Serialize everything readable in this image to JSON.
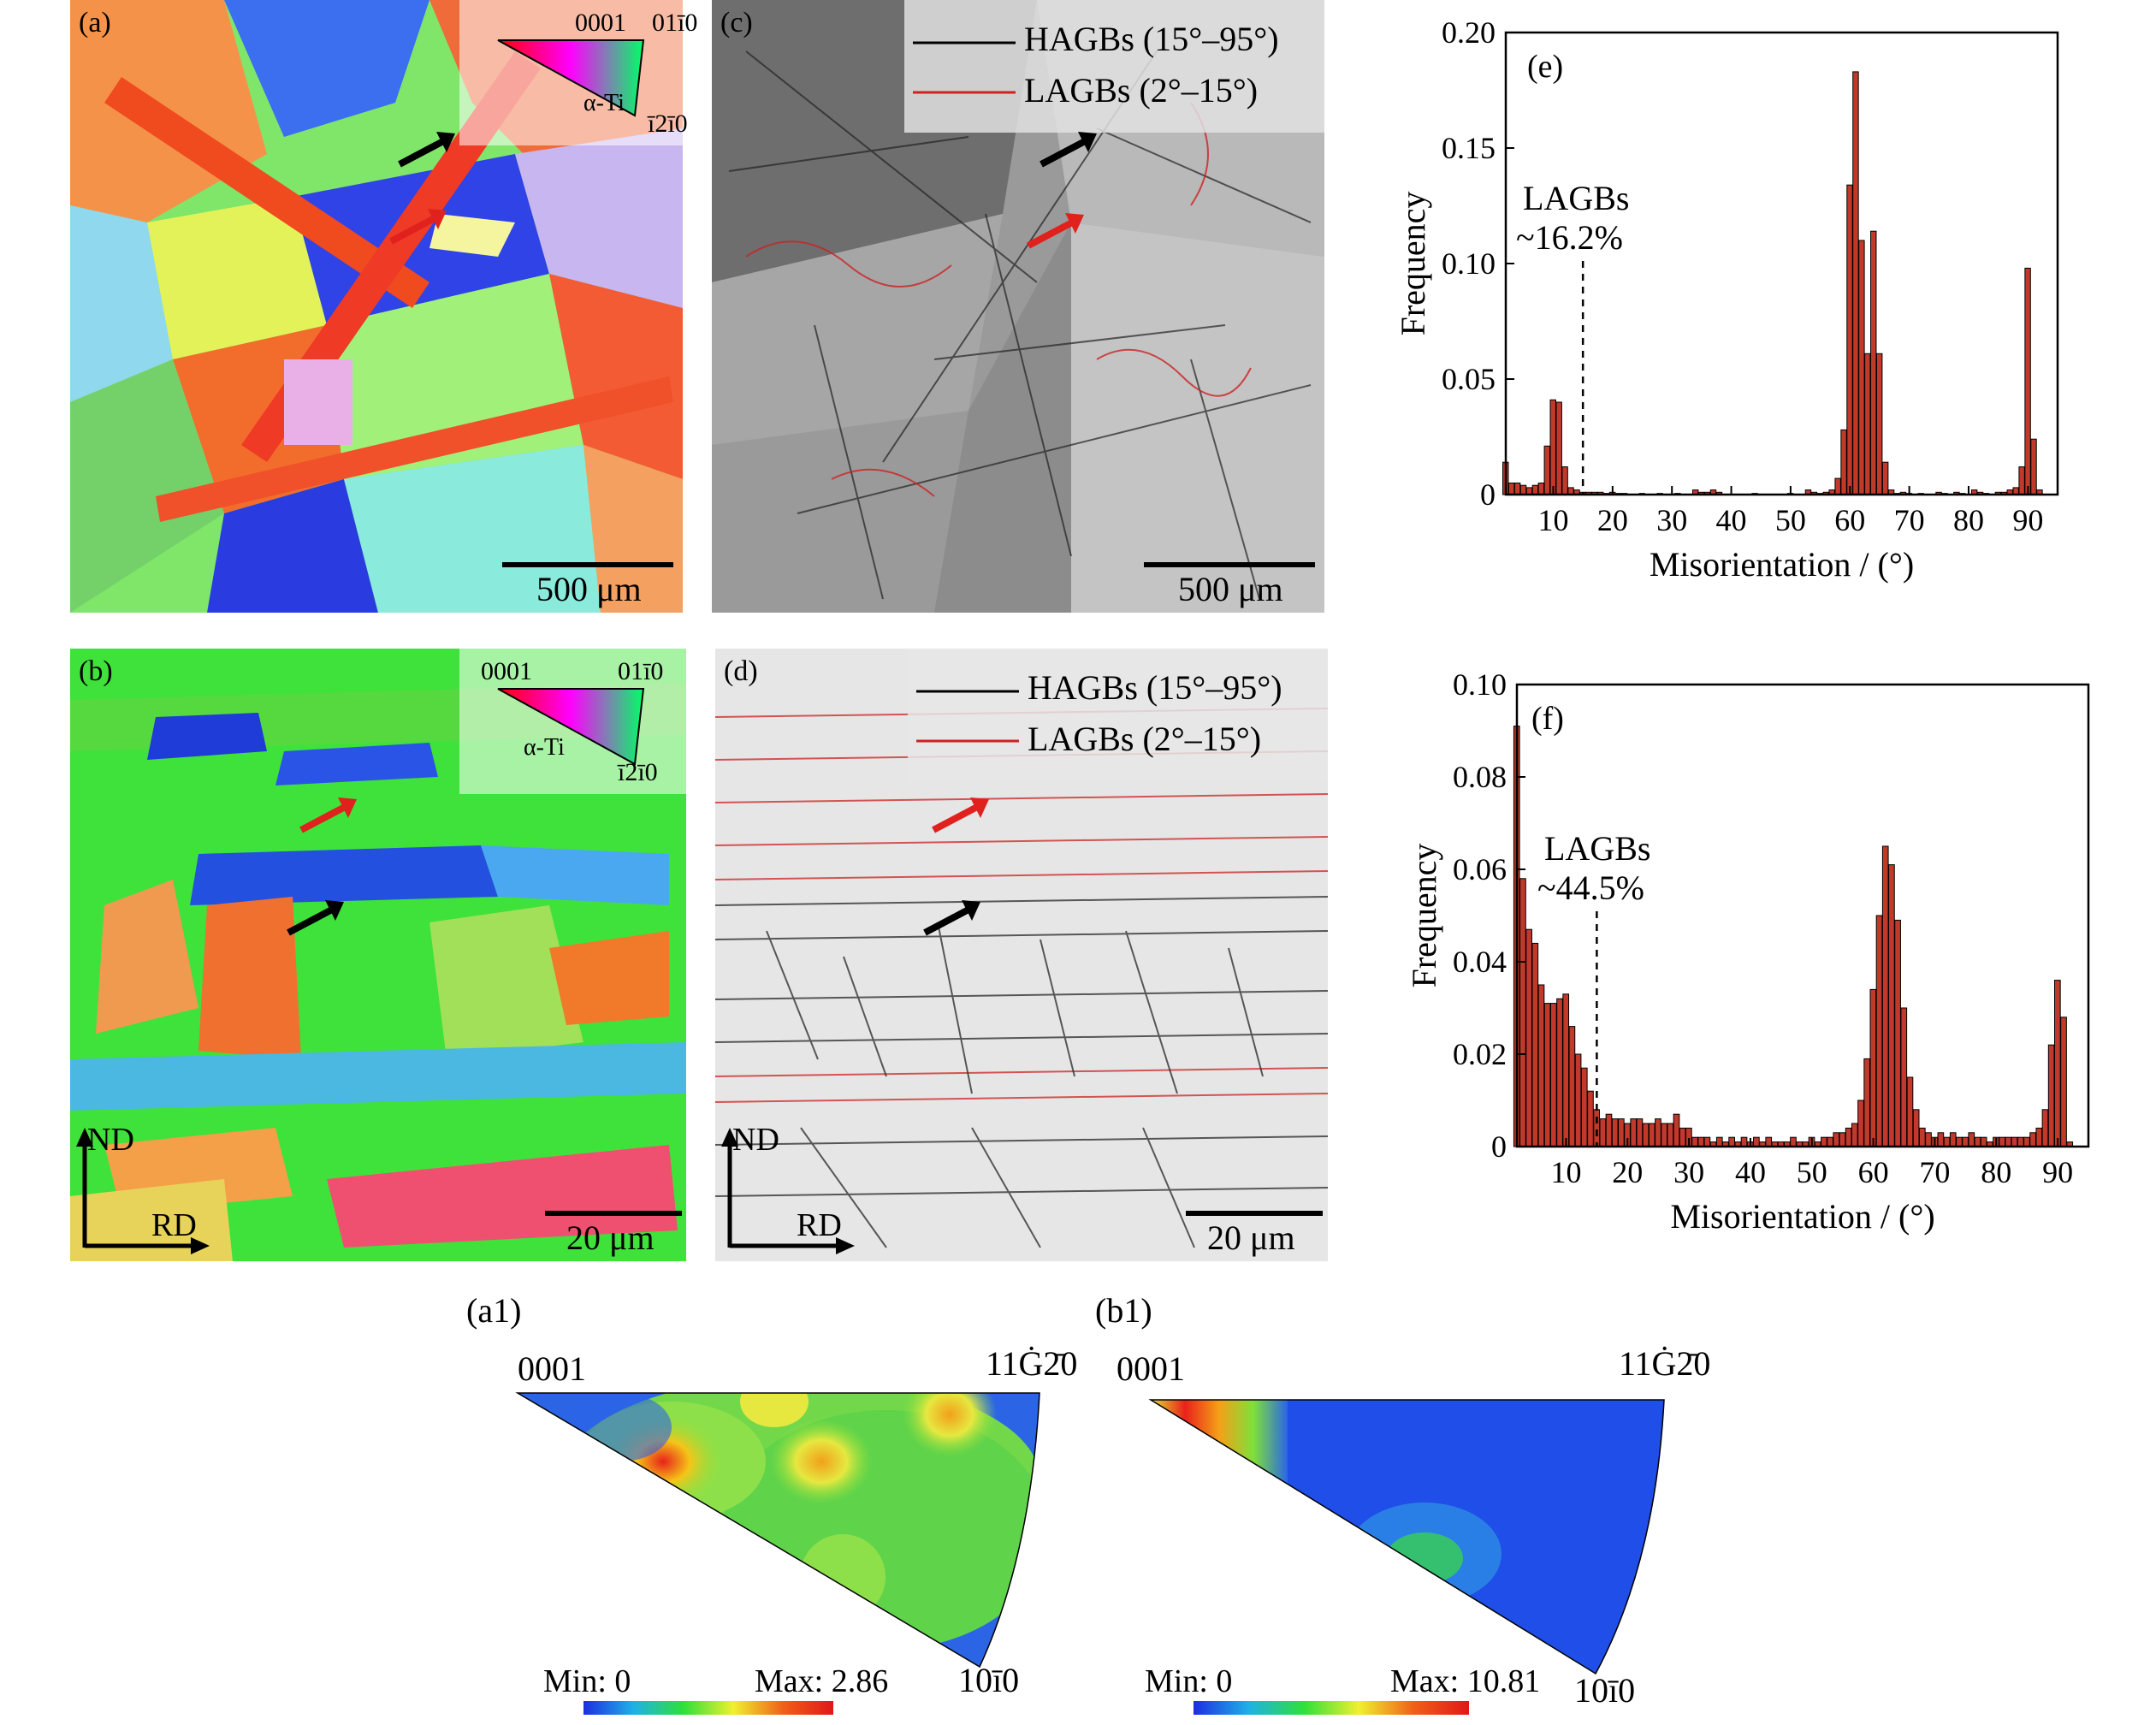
{
  "panels": {
    "a": {
      "label": "(a)",
      "scale": "500 μm",
      "key": {
        "c1": "0001",
        "c2": "01ī0",
        "c3": "ī2ī0",
        "phase": "α-Ti"
      }
    },
    "b": {
      "label": "(b)",
      "scale": "20 μm",
      "key": {
        "c1": "0001",
        "c2": "01ī0",
        "c3": "ī2ī0",
        "phase": "α-Ti"
      },
      "axis_nd": "ND",
      "axis_rd": "RD"
    },
    "c": {
      "label": "(c)",
      "scale": "500 μm",
      "legend": [
        "HAGBs (15°–95°)",
        "LAGBs (2°–15°)"
      ]
    },
    "d": {
      "label": "(d)",
      "scale": "20 μm",
      "legend": [
        "HAGBs (15°–95°)",
        "LAGBs (2°–15°)"
      ],
      "axis_nd": "ND",
      "axis_rd": "RD"
    }
  },
  "colors": {
    "hagb": "#000000",
    "lagb": "#cc2222",
    "bar": "#c0392b",
    "arrow_red": "#e0211d",
    "arrow_black": "#000000"
  },
  "chart_data": [
    {
      "type": "bar",
      "panel_label": "(e)",
      "xlabel": "Misorientation / (°)",
      "ylabel": "Frequency",
      "xlim": [
        2,
        95
      ],
      "ylim": [
        0,
        0.2
      ],
      "xticks": [
        10,
        20,
        30,
        40,
        50,
        60,
        70,
        80,
        90
      ],
      "yticks": [
        "0",
        "0.05",
        "0.10",
        "0.15",
        "0.20"
      ],
      "ytick_values": [
        0,
        0.05,
        0.1,
        0.15,
        0.2
      ],
      "annotation": [
        "LAGBs",
        "~16.2%"
      ],
      "dashed_x": 15,
      "bins": [
        [
          2,
          0.014
        ],
        [
          3,
          0.005
        ],
        [
          4,
          0.005
        ],
        [
          5,
          0.004
        ],
        [
          6,
          0.003
        ],
        [
          7,
          0.004
        ],
        [
          8,
          0.005
        ],
        [
          9,
          0.021
        ],
        [
          10,
          0.041
        ],
        [
          11,
          0.04
        ],
        [
          12,
          0.012
        ],
        [
          13,
          0.003
        ],
        [
          14,
          0.002
        ],
        [
          15,
          0.001
        ],
        [
          16,
          0.001
        ],
        [
          17,
          0.001
        ],
        [
          18,
          0.001
        ],
        [
          19,
          0.0005
        ],
        [
          20,
          0.001
        ],
        [
          21,
          0.0005
        ],
        [
          22,
          0.0005
        ],
        [
          25,
          0.0005
        ],
        [
          28,
          0.0005
        ],
        [
          31,
          0.0005
        ],
        [
          34,
          0.002
        ],
        [
          35,
          0.001
        ],
        [
          36,
          0.001
        ],
        [
          37,
          0.002
        ],
        [
          38,
          0.001
        ],
        [
          44,
          0.0005
        ],
        [
          50,
          0.0005
        ],
        [
          53,
          0.002
        ],
        [
          54,
          0.001
        ],
        [
          55,
          0.0005
        ],
        [
          56,
          0.001
        ],
        [
          57,
          0.002
        ],
        [
          58,
          0.007
        ],
        [
          59,
          0.028
        ],
        [
          60,
          0.134
        ],
        [
          61,
          0.183
        ],
        [
          62,
          0.11
        ],
        [
          63,
          0.061
        ],
        [
          64,
          0.114
        ],
        [
          65,
          0.061
        ],
        [
          66,
          0.014
        ],
        [
          67,
          0.002
        ],
        [
          68,
          0.0005
        ],
        [
          69,
          0.001
        ],
        [
          70,
          0.0005
        ],
        [
          72,
          0.0005
        ],
        [
          75,
          0.001
        ],
        [
          76,
          0.0005
        ],
        [
          78,
          0.001
        ],
        [
          79,
          0.0005
        ],
        [
          81,
          0.002
        ],
        [
          82,
          0.001
        ],
        [
          83,
          0.0005
        ],
        [
          85,
          0.001
        ],
        [
          86,
          0.001
        ],
        [
          87,
          0.002
        ],
        [
          88,
          0.003
        ],
        [
          89,
          0.012
        ],
        [
          90,
          0.098
        ],
        [
          91,
          0.024
        ],
        [
          92,
          0.002
        ]
      ]
    },
    {
      "type": "bar",
      "panel_label": "(f)",
      "xlabel": "Misorientation / (°)",
      "ylabel": "Frequency",
      "xlim": [
        2,
        95
      ],
      "ylim": [
        0,
        0.1
      ],
      "xticks": [
        10,
        20,
        30,
        40,
        50,
        60,
        70,
        80,
        90
      ],
      "yticks": [
        "0",
        "0.02",
        "0.04",
        "0.06",
        "0.08",
        "0.10"
      ],
      "ytick_values": [
        0,
        0.02,
        0.04,
        0.06,
        0.08,
        0.1
      ],
      "annotation": [
        "LAGBs",
        "~44.5%"
      ],
      "dashed_x": 15,
      "bins": [
        [
          2,
          0.091
        ],
        [
          3,
          0.058
        ],
        [
          4,
          0.047
        ],
        [
          5,
          0.044
        ],
        [
          6,
          0.035
        ],
        [
          7,
          0.031
        ],
        [
          8,
          0.031
        ],
        [
          9,
          0.032
        ],
        [
          10,
          0.033
        ],
        [
          11,
          0.026
        ],
        [
          12,
          0.02
        ],
        [
          13,
          0.017
        ],
        [
          14,
          0.012
        ],
        [
          15,
          0.008
        ],
        [
          16,
          0.006
        ],
        [
          17,
          0.007
        ],
        [
          18,
          0.006
        ],
        [
          19,
          0.006
        ],
        [
          20,
          0.005
        ],
        [
          21,
          0.006
        ],
        [
          22,
          0.006
        ],
        [
          23,
          0.005
        ],
        [
          24,
          0.005
        ],
        [
          25,
          0.006
        ],
        [
          26,
          0.005
        ],
        [
          27,
          0.005
        ],
        [
          28,
          0.007
        ],
        [
          29,
          0.004
        ],
        [
          30,
          0.004
        ],
        [
          31,
          0.002
        ],
        [
          32,
          0.002
        ],
        [
          33,
          0.002
        ],
        [
          34,
          0.001
        ],
        [
          35,
          0.002
        ],
        [
          36,
          0.001
        ],
        [
          37,
          0.002
        ],
        [
          38,
          0.001
        ],
        [
          39,
          0.002
        ],
        [
          40,
          0.001
        ],
        [
          41,
          0.002
        ],
        [
          42,
          0.001
        ],
        [
          43,
          0.002
        ],
        [
          44,
          0.001
        ],
        [
          45,
          0.001
        ],
        [
          46,
          0.001
        ],
        [
          47,
          0.002
        ],
        [
          48,
          0.001
        ],
        [
          49,
          0.001
        ],
        [
          50,
          0.002
        ],
        [
          51,
          0.001
        ],
        [
          52,
          0.002
        ],
        [
          53,
          0.002
        ],
        [
          54,
          0.003
        ],
        [
          55,
          0.003
        ],
        [
          56,
          0.004
        ],
        [
          57,
          0.005
        ],
        [
          58,
          0.01
        ],
        [
          59,
          0.019
        ],
        [
          60,
          0.034
        ],
        [
          61,
          0.05
        ],
        [
          62,
          0.065
        ],
        [
          63,
          0.061
        ],
        [
          64,
          0.049
        ],
        [
          65,
          0.03
        ],
        [
          66,
          0.015
        ],
        [
          67,
          0.008
        ],
        [
          68,
          0.004
        ],
        [
          69,
          0.003
        ],
        [
          70,
          0.002
        ],
        [
          71,
          0.003
        ],
        [
          72,
          0.002
        ],
        [
          73,
          0.003
        ],
        [
          74,
          0.002
        ],
        [
          75,
          0.002
        ],
        [
          76,
          0.003
        ],
        [
          77,
          0.002
        ],
        [
          78,
          0.002
        ],
        [
          79,
          0.001
        ],
        [
          80,
          0.002
        ],
        [
          81,
          0.002
        ],
        [
          82,
          0.002
        ],
        [
          83,
          0.002
        ],
        [
          84,
          0.002
        ],
        [
          85,
          0.002
        ],
        [
          86,
          0.003
        ],
        [
          87,
          0.004
        ],
        [
          88,
          0.008
        ],
        [
          89,
          0.022
        ],
        [
          90,
          0.036
        ],
        [
          91,
          0.028
        ],
        [
          92,
          0.001
        ]
      ]
    }
  ],
  "ipf": {
    "a1": {
      "label": "(a1)",
      "c1": "0001",
      "c2": "11Ġ2̄0",
      "c3": "10ī0",
      "min": "Min: 0",
      "max": "Max: 2.86"
    },
    "b1": {
      "label": "(b1)",
      "c1": "0001",
      "c2": "11Ġ2̄0",
      "c3": "10ī0",
      "min": "Min: 0",
      "max": "Max: 10.81"
    }
  }
}
